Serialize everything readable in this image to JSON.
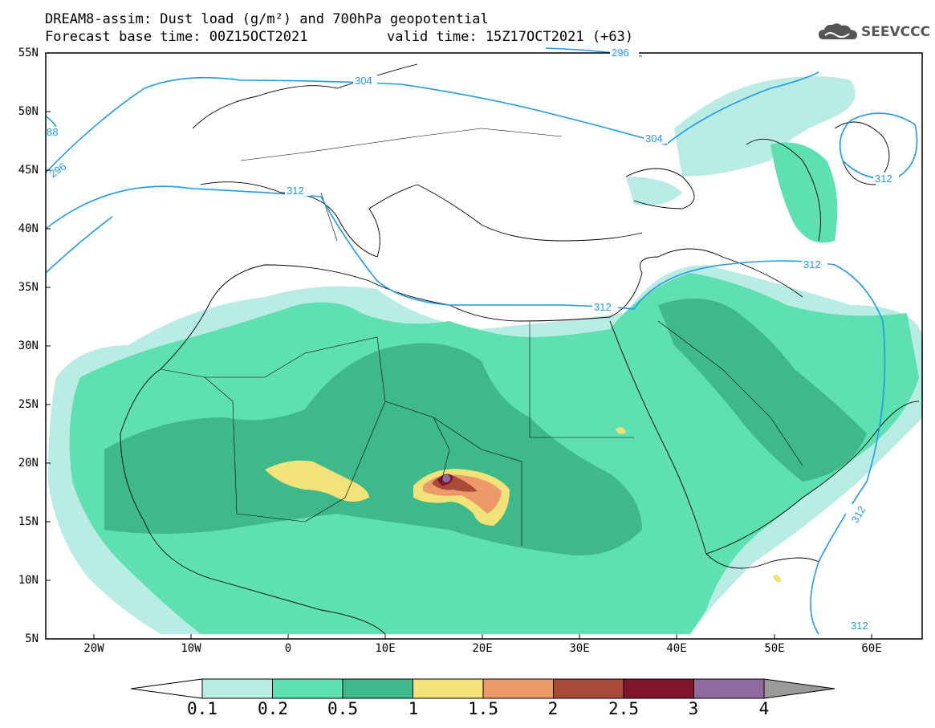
{
  "title_line1": "DREAM8-assim: Dust load (g/m²) and 700hPa geopotential",
  "title_line2a": "Forecast base time: 00Z15OCT2021",
  "title_line2b": "valid time: 15Z17OCT2021 (+63)",
  "logo_text": "SEEVCCC",
  "lat_labels": [
    "55N",
    "50N",
    "45N",
    "40N",
    "35N",
    "30N",
    "25N",
    "20N",
    "15N",
    "10N",
    "5N"
  ],
  "lon_labels": [
    "20W",
    "10W",
    "0",
    "10E",
    "20E",
    "30E",
    "40E",
    "50E",
    "60E"
  ],
  "contour_labels": [
    "296",
    "304",
    "304",
    "312",
    "312",
    "312",
    "312",
    "312",
    "296",
    "88",
    "312"
  ],
  "colorbar_labels": [
    "0.1",
    "0.2",
    "0.5",
    "1",
    "1.5",
    "2",
    "2.5",
    "3",
    "4"
  ],
  "colorbar_colors": [
    "#b9ece4",
    "#5fe0b0",
    "#3fb88a",
    "#f2e27a",
    "#ec9a6a",
    "#a84a3a",
    "#80162e",
    "#8f6aa0",
    "#9a9a9a"
  ]
}
